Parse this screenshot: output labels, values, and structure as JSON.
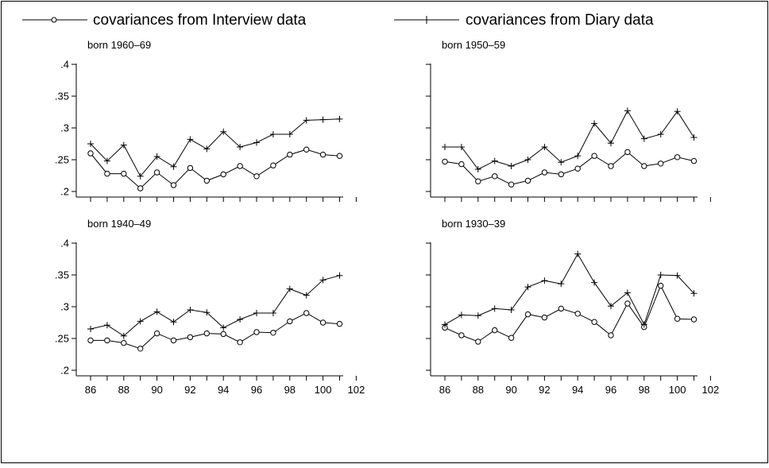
{
  "legend": {
    "interview_label": "covariances from Interview data",
    "diary_label": "covariances from Diary data"
  },
  "chart_data": {
    "type": "line",
    "x": [
      86,
      87,
      88,
      89,
      90,
      91,
      92,
      93,
      94,
      95,
      96,
      97,
      98,
      99,
      100,
      101
    ],
    "xlim": [
      86,
      102
    ],
    "ylim": [
      0.2,
      0.4
    ],
    "xticks": [
      "86",
      "88",
      "90",
      "92",
      "94",
      "96",
      "98",
      "100",
      "102"
    ],
    "yticks": [
      ".2",
      ".25",
      ".3",
      ".35",
      ".4"
    ],
    "legend_position": "top",
    "grid": false,
    "panels": [
      {
        "title": "born 1960–69",
        "series": [
          {
            "name": "covariances from Interview data",
            "marker": "circle",
            "values": [
              0.26,
              0.228,
              0.228,
              0.205,
              0.23,
              0.21,
              0.237,
              0.217,
              0.227,
              0.24,
              0.224,
              0.241,
              0.258,
              0.266,
              0.258,
              0.256
            ]
          },
          {
            "name": "covariances from Diary data",
            "marker": "plus",
            "values": [
              0.275,
              0.248,
              0.273,
              0.224,
              0.255,
              0.239,
              0.282,
              0.267,
              0.294,
              0.27,
              0.277,
              0.29,
              0.29,
              0.312,
              0.313,
              0.314
            ]
          }
        ]
      },
      {
        "title": "born 1950–59",
        "series": [
          {
            "name": "covariances from Interview data",
            "marker": "circle",
            "values": [
              0.247,
              0.243,
              0.216,
              0.224,
              0.211,
              0.217,
              0.23,
              0.227,
              0.236,
              0.256,
              0.24,
              0.262,
              0.24,
              0.244,
              0.254,
              0.248
            ]
          },
          {
            "name": "covariances from Diary data",
            "marker": "plus",
            "values": [
              0.27,
              0.27,
              0.235,
              0.248,
              0.24,
              0.25,
              0.27,
              0.246,
              0.256,
              0.307,
              0.276,
              0.327,
              0.283,
              0.29,
              0.326,
              0.285
            ]
          }
        ]
      },
      {
        "title": "born 1940–49",
        "series": [
          {
            "name": "covariances from Interview data",
            "marker": "circle",
            "values": [
              0.247,
              0.247,
              0.243,
              0.234,
              0.258,
              0.247,
              0.252,
              0.258,
              0.257,
              0.244,
              0.26,
              0.259,
              0.277,
              0.29,
              0.275,
              0.273
            ]
          },
          {
            "name": "covariances from Diary data",
            "marker": "plus",
            "values": [
              0.265,
              0.271,
              0.254,
              0.277,
              0.292,
              0.276,
              0.295,
              0.291,
              0.267,
              0.28,
              0.29,
              0.29,
              0.328,
              0.318,
              0.342,
              0.349
            ]
          }
        ]
      },
      {
        "title": "born 1930–39",
        "series": [
          {
            "name": "covariances from Interview data",
            "marker": "circle",
            "values": [
              0.267,
              0.255,
              0.245,
              0.263,
              0.251,
              0.288,
              0.283,
              0.297,
              0.289,
              0.276,
              0.255,
              0.305,
              0.268,
              0.333,
              0.281,
              0.28
            ]
          },
          {
            "name": "covariances from Diary data",
            "marker": "plus",
            "values": [
              0.272,
              0.287,
              0.286,
              0.297,
              0.295,
              0.331,
              0.341,
              0.336,
              0.383,
              0.338,
              0.301,
              0.322,
              0.272,
              0.35,
              0.349,
              0.321
            ]
          }
        ]
      }
    ]
  }
}
